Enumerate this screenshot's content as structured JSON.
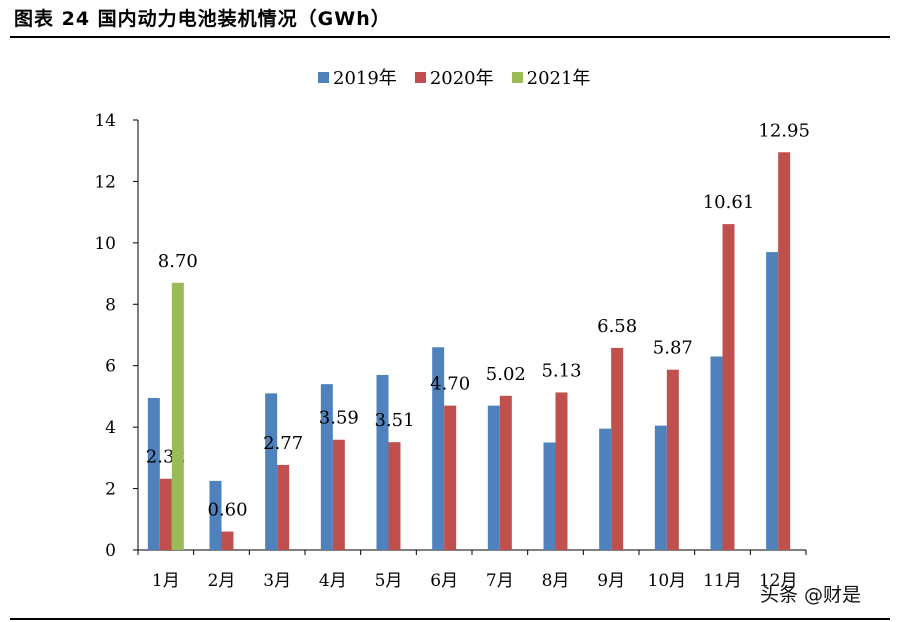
{
  "header": {
    "title": "图表 24 国内动力电池装机情况（GWh）"
  },
  "watermark": "头条 @财是",
  "colors": {
    "s2019": "#4F81BD",
    "s2020": "#C0504D",
    "s2021": "#9BBB59"
  },
  "chart_data": {
    "type": "bar",
    "categories": [
      "1月",
      "2月",
      "3月",
      "4月",
      "5月",
      "6月",
      "7月",
      "8月",
      "9月",
      "10月",
      "11月",
      "12月"
    ],
    "series": [
      {
        "name": "2019年",
        "values": [
          4.95,
          2.25,
          5.1,
          5.4,
          5.7,
          6.6,
          4.7,
          3.5,
          3.95,
          4.05,
          6.3,
          9.7
        ]
      },
      {
        "name": "2020年",
        "values": [
          2.32,
          0.6,
          2.77,
          3.59,
          3.51,
          4.7,
          5.02,
          5.13,
          6.58,
          5.87,
          10.61,
          12.95
        ],
        "data_labels": [
          "2.32",
          "0.60",
          "2.77",
          "3.59",
          "3.51",
          "4.70",
          "5.02",
          "5.13",
          "6.58",
          "5.87",
          "10.61",
          "12.95"
        ]
      },
      {
        "name": "2021年",
        "values": [
          8.7,
          null,
          null,
          null,
          null,
          null,
          null,
          null,
          null,
          null,
          null,
          null
        ],
        "data_labels": [
          "8.70",
          "",
          "",
          "",
          "",
          "",
          "",
          "",
          "",
          "",
          "",
          ""
        ]
      }
    ],
    "y_ticks": [
      "0",
      "2",
      "4",
      "6",
      "8",
      "10",
      "12",
      "14"
    ],
    "ylim": [
      0,
      14
    ],
    "grid": false,
    "legend_position": "top-center"
  }
}
